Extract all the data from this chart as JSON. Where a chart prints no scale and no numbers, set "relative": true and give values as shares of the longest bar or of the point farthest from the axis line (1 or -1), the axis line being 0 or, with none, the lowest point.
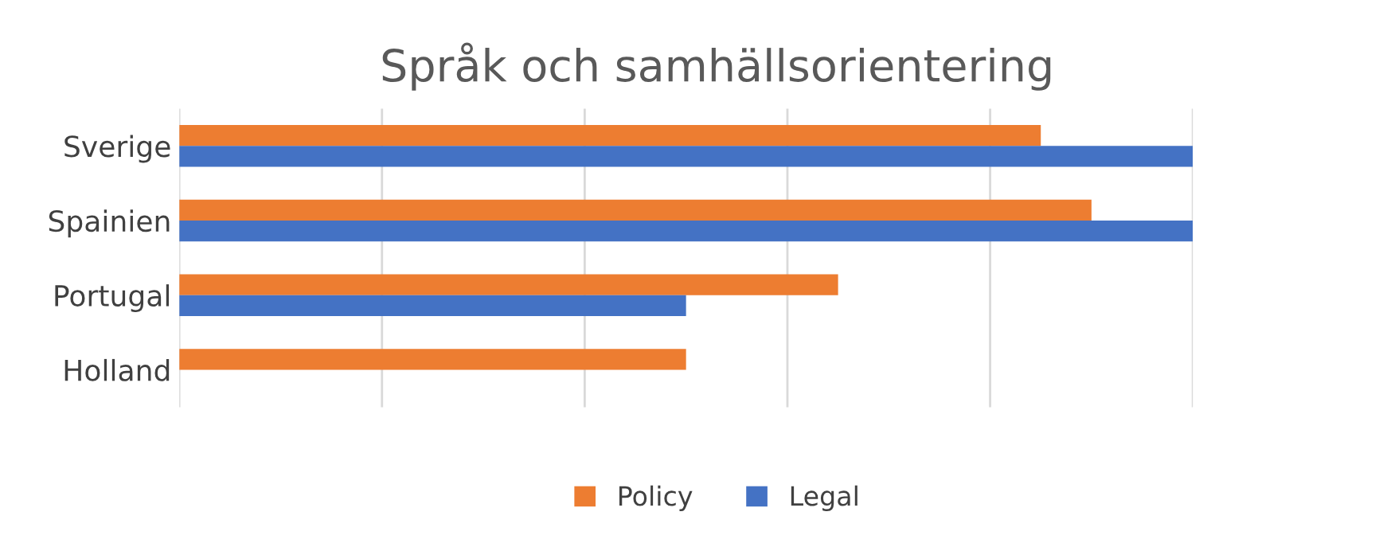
{
  "chart_data": {
    "type": "bar",
    "orientation": "horizontal",
    "relative": true,
    "title": "Språk och samhällsorientering",
    "categories": [
      "Sverige",
      "Spainien",
      "Portugal",
      "Holland"
    ],
    "series": [
      {
        "name": "Policy",
        "color": "#ed7d31",
        "values": [
          0.85,
          0.9,
          0.65,
          0.5
        ]
      },
      {
        "name": "Legal",
        "color": "#4472c4",
        "values": [
          1,
          1,
          0.5,
          null
        ]
      }
    ],
    "grid": "x",
    "legend": "bottom"
  }
}
